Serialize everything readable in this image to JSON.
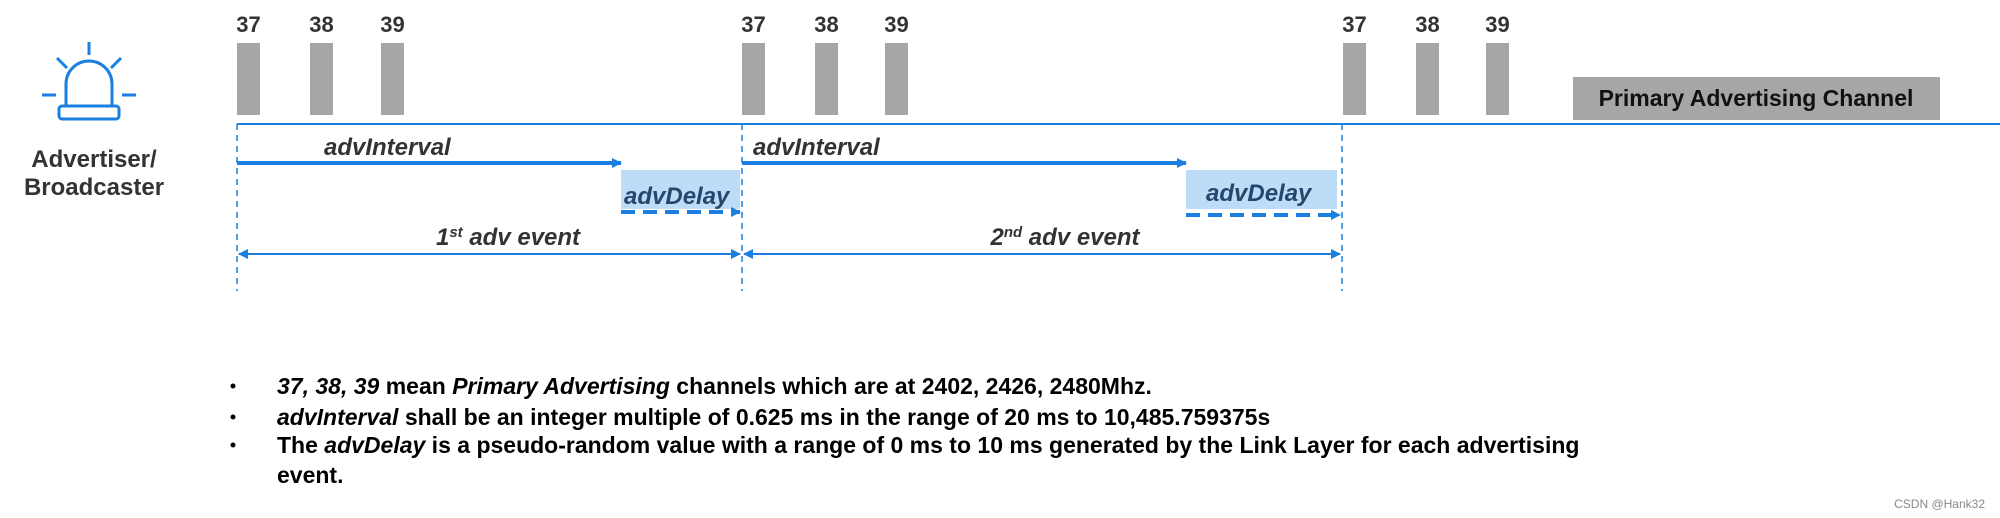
{
  "actor": [
    "Advertiser/",
    "Broadcaster"
  ],
  "channel_groups": [
    [
      "37",
      "38",
      "39"
    ],
    [
      "37",
      "38",
      "39"
    ],
    [
      "37",
      "38",
      "39"
    ]
  ],
  "legend": "Primary Advertising Channel",
  "intervals": [
    "advInterval",
    "advInterval"
  ],
  "delays": [
    "advDelay",
    "advDelay"
  ],
  "events": [
    [
      {
        "text": "1"
      },
      {
        "text": "st",
        "sup": true
      },
      {
        "text": " adv event"
      }
    ],
    [
      {
        "text": "2"
      },
      {
        "text": "nd",
        "sup": true
      },
      {
        "text": " adv event"
      }
    ]
  ],
  "bullets": [
    [
      [
        {
          "text": "37, 38, 39",
          "em": true
        },
        {
          "text": " mean "
        },
        {
          "text": "Primary Advertising",
          "em": true
        },
        {
          "text": " channels which are at 2402, 2426, 2480Mhz."
        }
      ]
    ],
    [
      [
        {
          "text": "advInterval",
          "em": true
        },
        {
          "text": " shall be an integer multiple of 0.625 ms in the range of 20 ms to 10,485.759375s"
        }
      ]
    ],
    [
      [
        {
          "text": "The "
        },
        {
          "text": "advDelay",
          "em": true
        },
        {
          "text": " is a pseudo-random value with a range of 0 ms to 10 ms generated by the Link Layer for each advertising"
        }
      ],
      [
        {
          "text": "event."
        }
      ]
    ]
  ],
  "watermark": "CSDN @Hank32"
}
